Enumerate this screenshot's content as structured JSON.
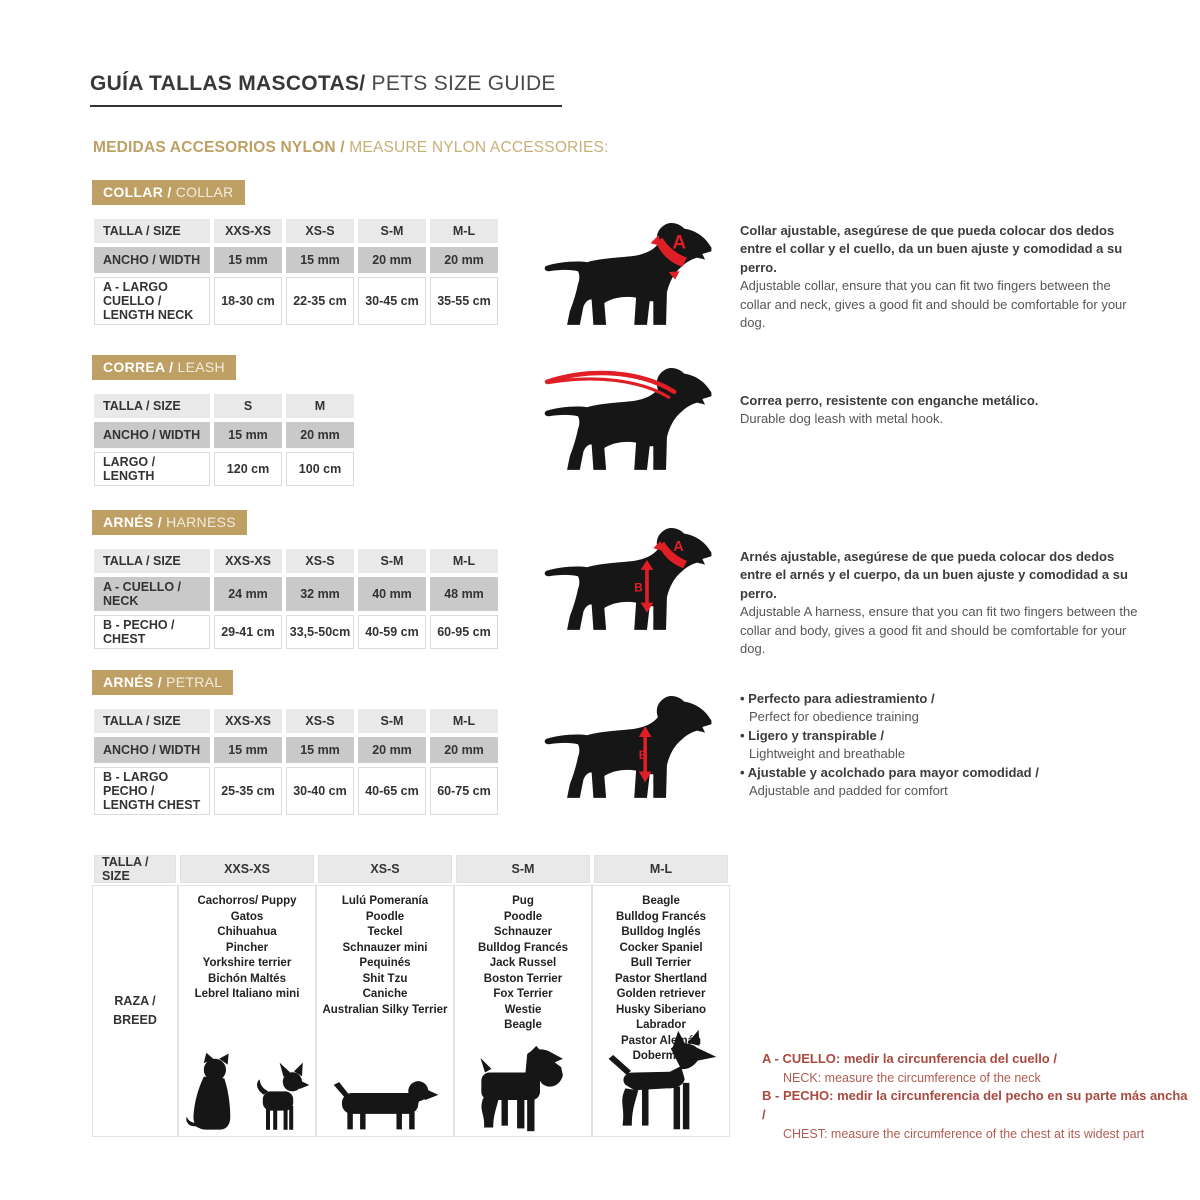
{
  "title": {
    "es": "GUÍA TALLAS MASCOTAS/",
    "en": " PETS SIZE GUIDE"
  },
  "subtitle": {
    "es": "MEDIDAS ACCESORIOS NYLON / ",
    "en": "MEASURE NYLON ACCESSORIES:"
  },
  "colors": {
    "accent_tan": "#bfa064",
    "note_red": "#a84a40",
    "mark_red": "#e01e25"
  },
  "collar": {
    "tag_es": "COLLAR /",
    "tag_en": " COLLAR",
    "header": [
      "TALLA / SIZE",
      "XXS-XS",
      "XS-S",
      "S-M",
      "M-L"
    ],
    "row1_label": "ANCHO / WIDTH",
    "row1": [
      "15 mm",
      "15 mm",
      "20 mm",
      "20 mm"
    ],
    "row2_label": "A - LARGO CUELLO / LENGTH NECK",
    "row2": [
      "18-30 cm",
      "22-35 cm",
      "30-45 cm",
      "35-55 cm"
    ],
    "desc_es": "Collar ajustable, asegúrese de que pueda colocar dos dedos entre el collar y el cuello, da un buen ajuste y comodidad a su perro.",
    "desc_en": "Adjustable collar, ensure that you can fit two fingers between the collar and neck, gives a good fit and should be comfortable for your dog.",
    "mark": "A"
  },
  "leash": {
    "tag_es": "CORREA /",
    "tag_en": " LEASH",
    "header": [
      "TALLA / SIZE",
      "S",
      "M"
    ],
    "row1_label": "ANCHO / WIDTH",
    "row1": [
      "15 mm",
      "20 mm"
    ],
    "row2_label": "LARGO / LENGTH",
    "row2": [
      "120 cm",
      "100 cm"
    ],
    "desc_es": "Correa perro, resistente con enganche metálico.",
    "desc_en": "Durable dog leash with metal hook."
  },
  "harness": {
    "tag_es": "ARNÉS /",
    "tag_en": " HARNESS",
    "header": [
      "TALLA / SIZE",
      "XXS-XS",
      "XS-S",
      "S-M",
      "M-L"
    ],
    "row1_label": "A - CUELLO / NECK",
    "row1": [
      "24 mm",
      "32 mm",
      "40 mm",
      "48 mm"
    ],
    "row2_label": "B - PECHO / CHEST",
    "row2": [
      "29-41 cm",
      "33,5-50cm",
      "40-59 cm",
      "60-95 cm"
    ],
    "desc_es": "Arnés ajustable, asegúrese de que pueda colocar dos dedos entre el arnés y el cuerpo, da un buen ajuste y comodidad a su perro.",
    "desc_en": "Adjustable A harness, ensure that you can fit two fingers between the collar and body, gives a good fit and should be comfortable for your dog.",
    "neck_mark": "A",
    "chest_mark": "B"
  },
  "petral": {
    "tag_es": "ARNÉS /",
    "tag_en": " PETRAL",
    "header": [
      "TALLA / SIZE",
      "XXS-XS",
      "XS-S",
      "S-M",
      "M-L"
    ],
    "row1_label": "ANCHO / WIDTH",
    "row1": [
      "15 mm",
      "15 mm",
      "20 mm",
      "20 mm"
    ],
    "row2_label": "B - LARGO PECHO / LENGTH CHEST",
    "row2": [
      "25-35 cm",
      "30-40 cm",
      "40-65 cm",
      "60-75 cm"
    ],
    "bullets": [
      {
        "es": "Perfecto para adiestramiento /",
        "en": "Perfect for obedience training"
      },
      {
        "es": "Ligero y transpirable /",
        "en": "Lightweight and breathable"
      },
      {
        "es": "Ajustable y acolchado para mayor comodidad /",
        "en": "Adjustable and padded for comfort"
      }
    ],
    "chest_mark": "B"
  },
  "breeds": {
    "header": [
      "TALLA /  SIZE",
      "XXS-XS",
      "XS-S",
      "S-M",
      "M-L"
    ],
    "row_label_line1": "RAZA /",
    "row_label_line2": "BREED",
    "xxs_xs": [
      "Cachorros/ Puppy",
      "Gatos",
      "Chihuahua",
      "Pincher",
      "Yorkshire terrier",
      "Bichón Maltés",
      "Lebrel Italiano mini"
    ],
    "xs_s": [
      "Lulú Pomeranía",
      "Poodle",
      "Teckel",
      "Schnauzer mini",
      "Pequinés",
      "Shit Tzu",
      "Caniche",
      "Australian Silky Terrier"
    ],
    "s_m": [
      "Pug",
      "Poodle",
      "Schnauzer",
      "Bulldog Francés",
      "Jack Russel",
      "Boston Terrier",
      "Fox Terrier",
      "Westie",
      "Beagle"
    ],
    "m_l": [
      "Beagle",
      "Bulldog Francés",
      "Bulldog Inglés",
      "Cocker Spaniel",
      "Bull Terrier",
      "Pastor Shertland",
      "Golden retriever",
      "Husky Siberiano",
      "Labrador",
      "Pastor Alemán",
      "Doberman"
    ]
  },
  "notes": [
    {
      "es": "A - CUELLO: medir la circunferencia del cuello /",
      "en": "NECK: measure the circumference of the neck"
    },
    {
      "es": "B - PECHO: medir la circunferencia del pecho en su parte más ancha /",
      "en": "CHEST: measure the circumference of the chest at its widest part"
    }
  ]
}
